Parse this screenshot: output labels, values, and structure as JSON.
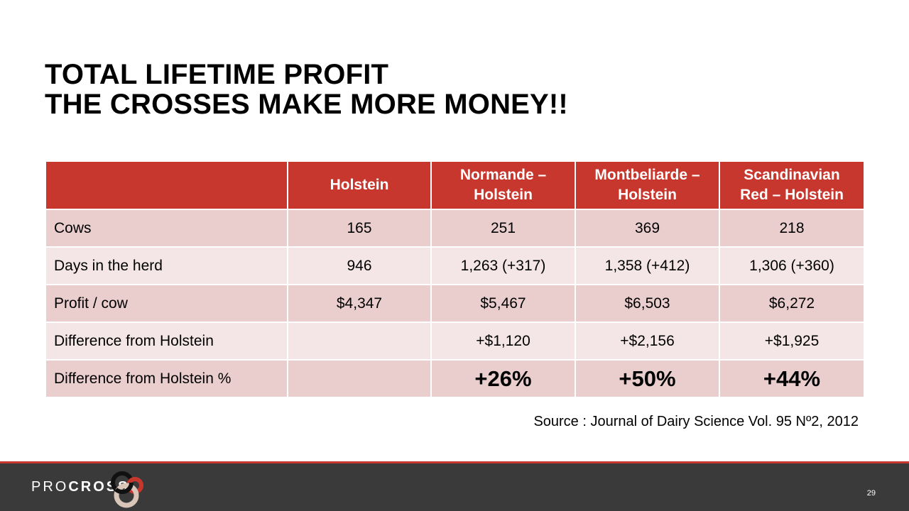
{
  "title": {
    "line1": "TOTAL LIFETIME PROFIT",
    "line2": "THE CROSSES MAKE MORE MONEY!!"
  },
  "table": {
    "headers": [
      "",
      "Holstein",
      "Normande –\nHolstein",
      "Montbeliarde –\nHolstein",
      "Scandinavian\nRed – Holstein"
    ],
    "rows": [
      {
        "label": "Cows",
        "values": [
          "165",
          "251",
          "369",
          "218"
        ]
      },
      {
        "label": "Days in the herd",
        "values": [
          "946",
          "1,263 (+317)",
          "1,358 (+412)",
          "1,306 (+360)"
        ]
      },
      {
        "label": "Profit / cow",
        "values": [
          "$4,347",
          "$5,467",
          "$6,503",
          "$6,272"
        ]
      },
      {
        "label": "Difference from Holstein",
        "values": [
          "",
          "+$1,120",
          "+$2,156",
          "+$1,925"
        ]
      },
      {
        "label": "Difference from Holstein %",
        "values": [
          "",
          "+26%",
          "+50%",
          "+44%"
        ]
      }
    ]
  },
  "source": "Source : Journal of Dairy Science Vol. 95 Nº2, 2012",
  "footer": {
    "brand_pro": "PRO",
    "brand_cross": "CROSS",
    "page_number": "29"
  },
  "colors": {
    "accent": "#c8372d",
    "row_dark": "#eacecd",
    "row_light": "#f4e6e6",
    "footer_bg": "#3a3a3a"
  }
}
